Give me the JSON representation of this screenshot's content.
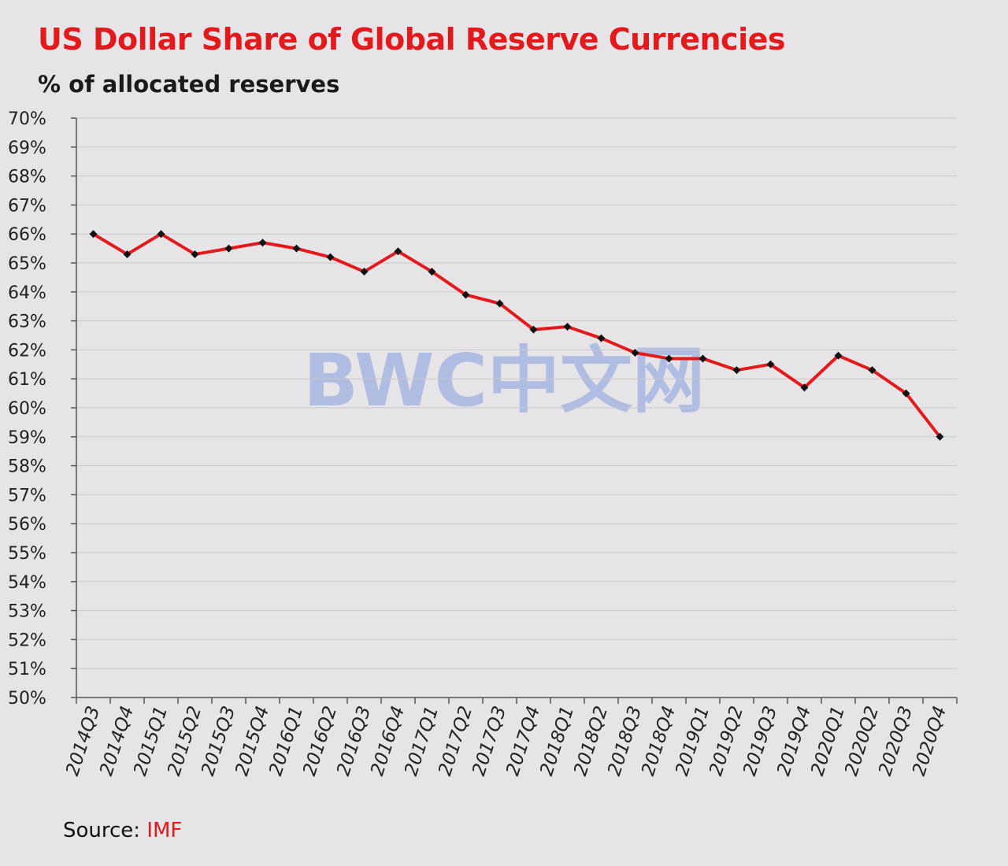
{
  "chart_data": {
    "type": "line",
    "title": "US Dollar Share of Global Reserve Currencies",
    "subtitle": "% of allocated reserves",
    "source_label": "Source: ",
    "source_value": "IMF",
    "watermark": "BWC中文网",
    "ylim": [
      50,
      70
    ],
    "yticks": [
      50,
      51,
      52,
      53,
      54,
      55,
      56,
      57,
      58,
      59,
      60,
      61,
      62,
      63,
      64,
      65,
      66,
      67,
      68,
      69,
      70
    ],
    "ytick_suffix": "%",
    "grid": true,
    "line_color": "#e31a1c",
    "marker_color": "#111111",
    "categories": [
      "2014Q3",
      "2014Q4",
      "2015Q1",
      "2015Q2",
      "2015Q3",
      "2015Q4",
      "2016Q1",
      "2016Q2",
      "2016Q3",
      "2016Q4",
      "2017Q1",
      "2017Q2",
      "2017Q3",
      "2017Q4",
      "2018Q1",
      "2018Q2",
      "2018Q3",
      "2018Q4",
      "2019Q1",
      "2019Q2",
      "2019Q3",
      "2019Q4",
      "2020Q1",
      "2020Q2",
      "2020Q3",
      "2020Q4"
    ],
    "values": [
      66.0,
      65.3,
      66.0,
      65.3,
      65.5,
      65.7,
      65.5,
      65.2,
      64.7,
      65.4,
      64.7,
      63.9,
      63.6,
      62.7,
      62.8,
      62.4,
      61.9,
      61.7,
      61.7,
      61.3,
      61.5,
      60.7,
      61.8,
      61.3,
      60.5,
      59.0
    ]
  }
}
